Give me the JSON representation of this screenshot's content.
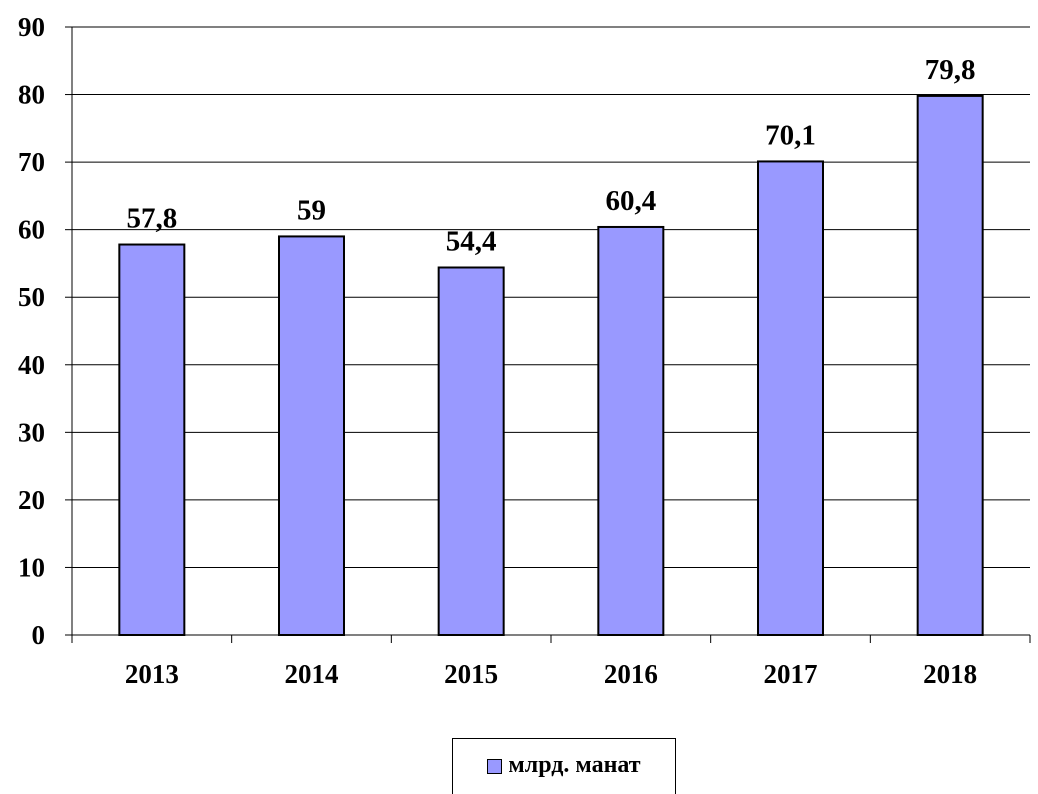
{
  "chart_data": {
    "type": "bar",
    "categories": [
      "2013",
      "2014",
      "2015",
      "2016",
      "2017",
      "2018"
    ],
    "series": [
      {
        "name": "млрд. манат",
        "values": [
          57.8,
          59,
          54.4,
          60.4,
          70.1,
          79.8
        ],
        "value_labels": [
          "57,8",
          "59",
          "54,4",
          "60,4",
          "70,1",
          "79,8"
        ],
        "color": "#9999ff"
      }
    ],
    "ylim": [
      0,
      90
    ],
    "yticks": [
      0,
      10,
      20,
      30,
      40,
      50,
      60,
      70,
      80,
      90
    ],
    "grid": true,
    "legend_position": "bottom"
  }
}
